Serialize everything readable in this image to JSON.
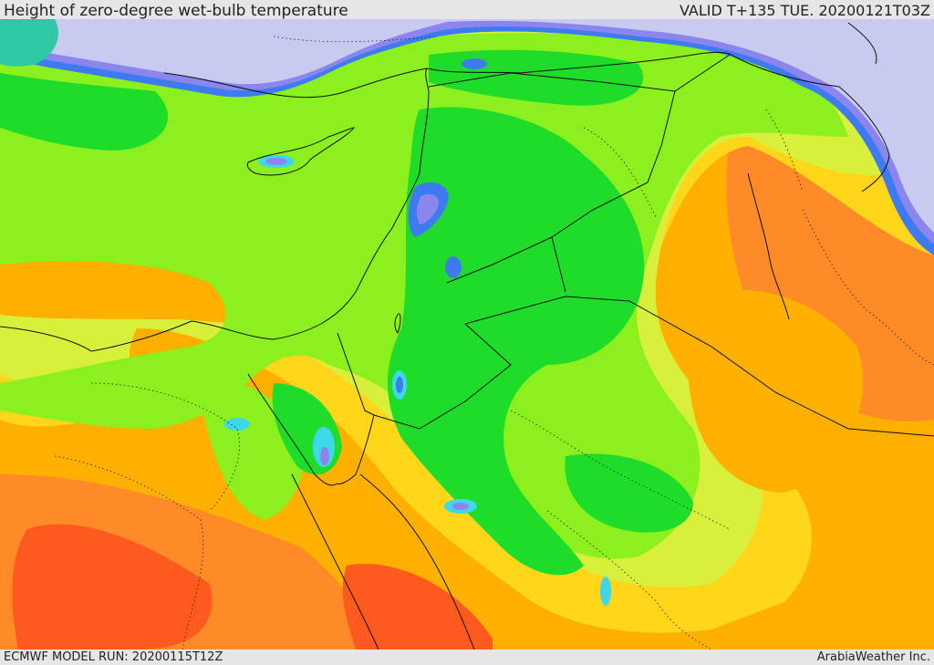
{
  "header": {
    "title": "Height of zero-degree wet-bulb temperature",
    "valid_time": "VALID T+135 TUE. 20200121T03Z"
  },
  "footer": {
    "model_run": "ECMWF MODEL RUN: 20200115T12Z",
    "provider": "ArabiaWeather Inc."
  },
  "colors": {
    "sea_low": "#c8cbef",
    "violet": "#8a86ee",
    "blue": "#3f7bf0",
    "cyan": "#3fd7ea",
    "teal": "#2ec8a6",
    "green": "#1fdc2a",
    "lime": "#8cf01e",
    "yellow_green": "#d8f03c",
    "yellow": "#ffd61a",
    "orange": "#ffb000",
    "dark_orange": "#ff8a28",
    "red_orange": "#ff5a1e",
    "border": "#111111"
  }
}
